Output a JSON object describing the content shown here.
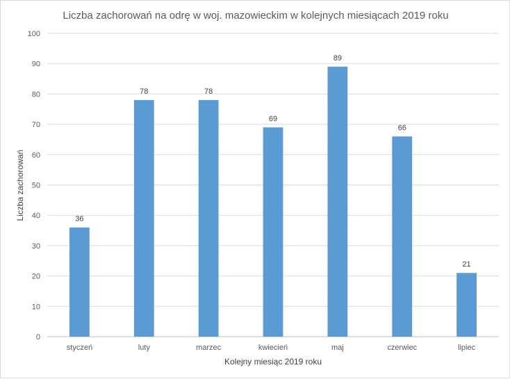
{
  "chart_data": {
    "type": "bar",
    "title": "Liczba zachorowań na odrę w woj. mazowieckim w kolejnych miesiącach 2019 roku",
    "xlabel": "Kolejny miesiąc 2019 roku",
    "ylabel": "Liczba zachorowań",
    "categories": [
      "styczeń",
      "luty",
      "marzec",
      "kwiecień",
      "maj",
      "czerwiec",
      "lipiec"
    ],
    "values": [
      36,
      78,
      78,
      69,
      89,
      66,
      21
    ],
    "ylim": [
      0,
      100
    ],
    "yticks": [
      0,
      10,
      20,
      30,
      40,
      50,
      60,
      70,
      80,
      90,
      100
    ],
    "grid": true,
    "legend": "none",
    "show_data_labels": true,
    "colors": {
      "bar": "#5b9bd5",
      "grid": "#d9d9d9"
    }
  }
}
